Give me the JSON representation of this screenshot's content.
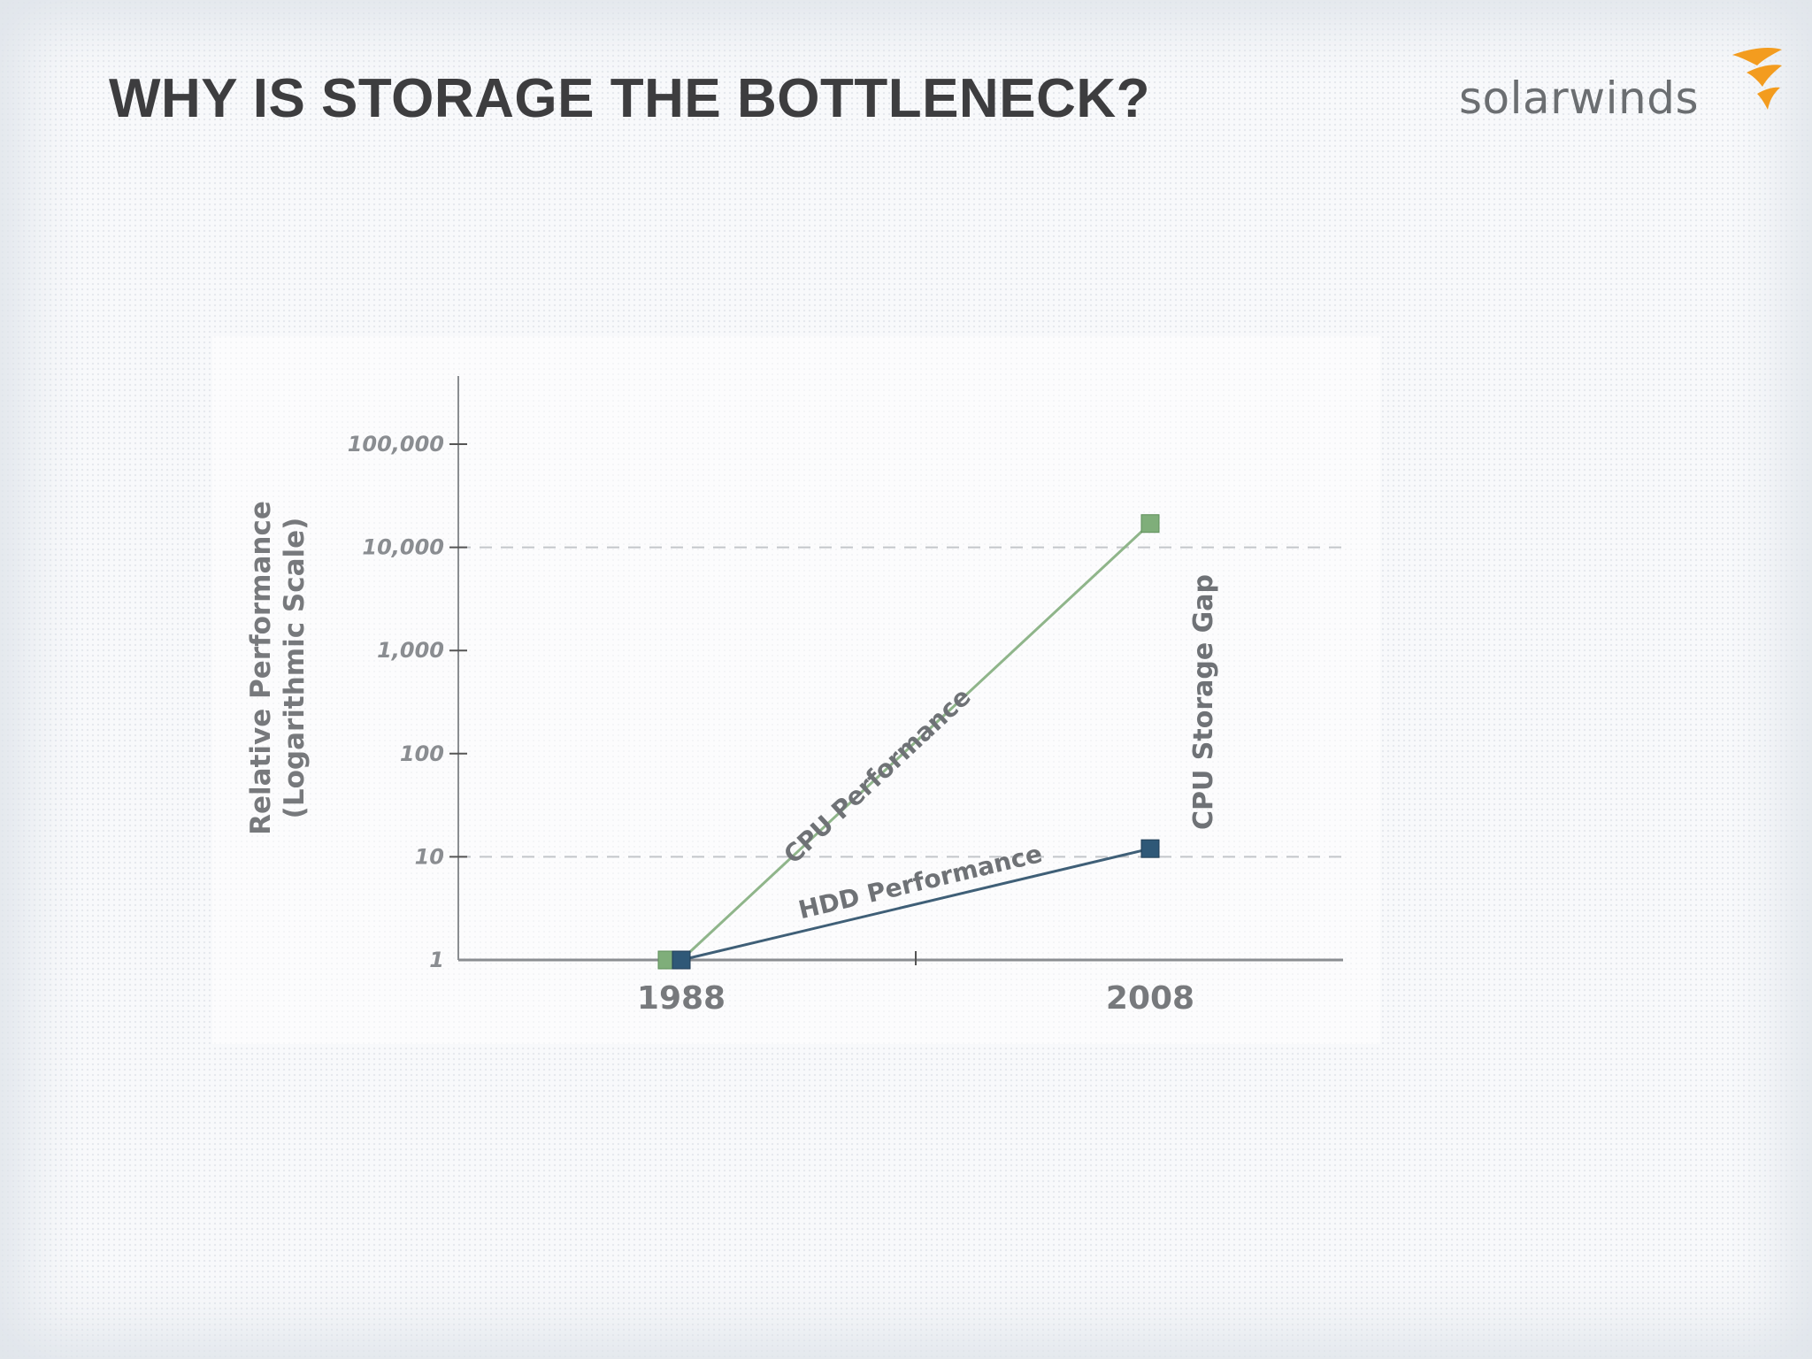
{
  "slide": {
    "title": "WHY IS STORAGE THE BOTTLENECK?"
  },
  "logo": {
    "text": "solarwinds",
    "icon": "flame-icon",
    "text_color": "#6b6e71",
    "icon_color": "#f39c1f"
  },
  "chart_data": {
    "type": "line",
    "y_scale": "log",
    "ylabel": [
      "Relative Performance",
      "(Logarithmic Scale)"
    ],
    "xlabel": "",
    "x_ticks": [
      "1988",
      "2008"
    ],
    "y_ticks": [
      "1",
      "10",
      "100",
      "1,000",
      "10,000",
      "100,000"
    ],
    "y_tick_values": [
      1,
      10,
      100,
      1000,
      10000,
      100000
    ],
    "ylim": [
      1,
      300000
    ],
    "grid": "dashed lines at 10 and 10,000",
    "gridlines_at": [
      10,
      10000
    ],
    "series": [
      {
        "name": "CPU Performance",
        "x": [
          "1988",
          "2008"
        ],
        "y": [
          1,
          17000
        ],
        "color": "#8fb58a",
        "marker_color": "#7fae7a"
      },
      {
        "name": "HDD Performance",
        "x": [
          "1988",
          "2008"
        ],
        "y": [
          1,
          12
        ],
        "color": "#3f5f77",
        "marker_color": "#2f5877"
      }
    ],
    "annotations": [
      {
        "text": "CPU Storage Gap",
        "at_x": "2008"
      }
    ]
  }
}
